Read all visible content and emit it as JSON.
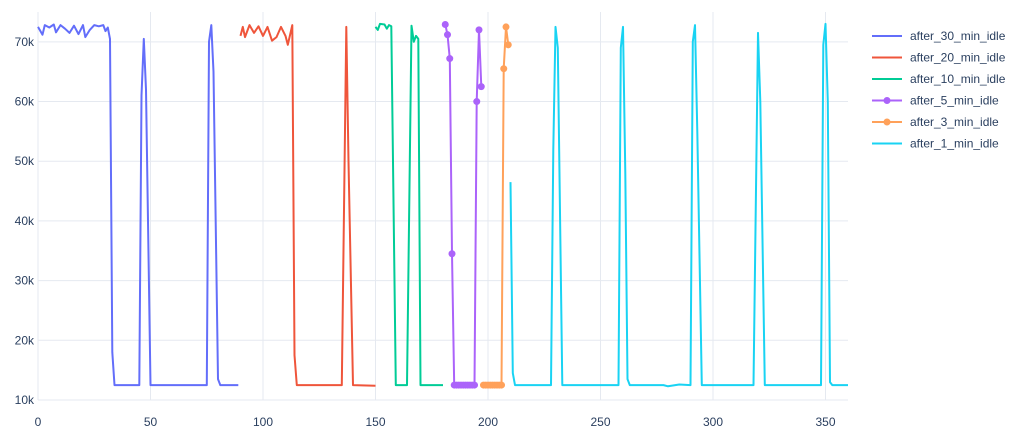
{
  "chart_data": {
    "type": "line",
    "title": "",
    "xlabel": "",
    "ylabel": "",
    "xlim": [
      0,
      360
    ],
    "ylim": [
      10000,
      75000
    ],
    "x_ticks": [
      0,
      50,
      100,
      150,
      200,
      250,
      300,
      350
    ],
    "y_ticks": [
      10000,
      20000,
      30000,
      40000,
      50000,
      60000,
      70000
    ],
    "y_tick_labels": [
      "10k",
      "20k",
      "30k",
      "40k",
      "50k",
      "60k",
      "70k"
    ],
    "grid": true,
    "legend_position": "right",
    "series": [
      {
        "name": "after_30_min_idle",
        "color": "#636efa",
        "mode": "lines",
        "points": [
          [
            0,
            72500
          ],
          [
            2,
            71200
          ],
          [
            3,
            72800
          ],
          [
            5,
            72400
          ],
          [
            7,
            72900
          ],
          [
            8,
            71600
          ],
          [
            10,
            72800
          ],
          [
            12,
            72200
          ],
          [
            14,
            71500
          ],
          [
            16,
            72700
          ],
          [
            18,
            71300
          ],
          [
            20,
            72800
          ],
          [
            21,
            70800
          ],
          [
            23,
            72000
          ],
          [
            25,
            72800
          ],
          [
            27,
            72600
          ],
          [
            29,
            72800
          ],
          [
            30,
            71800
          ],
          [
            31,
            72400
          ],
          [
            32,
            70500
          ],
          [
            33,
            18000
          ],
          [
            34,
            12500
          ],
          [
            45,
            12500
          ],
          [
            46,
            61000
          ],
          [
            47,
            70500
          ],
          [
            48,
            62000
          ],
          [
            50,
            12500
          ],
          [
            75,
            12500
          ],
          [
            76,
            70000
          ],
          [
            77,
            72800
          ],
          [
            78,
            65000
          ],
          [
            80,
            13500
          ],
          [
            81,
            12500
          ],
          [
            89,
            12500
          ]
        ]
      },
      {
        "name": "after_20_min_idle",
        "color": "#ef553b",
        "mode": "lines",
        "points": [
          [
            90,
            71000
          ],
          [
            91,
            72500
          ],
          [
            92,
            70800
          ],
          [
            94,
            72800
          ],
          [
            96,
            71500
          ],
          [
            98,
            72600
          ],
          [
            100,
            71000
          ],
          [
            102,
            72500
          ],
          [
            104,
            70200
          ],
          [
            106,
            70800
          ],
          [
            108,
            72500
          ],
          [
            110,
            71000
          ],
          [
            111,
            69500
          ],
          [
            113,
            72800
          ],
          [
            114,
            17500
          ],
          [
            115,
            12500
          ],
          [
            135,
            12500
          ],
          [
            137,
            72500
          ],
          [
            138,
            50000
          ],
          [
            140,
            12500
          ],
          [
            150,
            12400
          ]
        ]
      },
      {
        "name": "after_10_min_idle",
        "color": "#00cc96",
        "mode": "lines",
        "points": [
          [
            150,
            72500
          ],
          [
            151,
            72000
          ],
          [
            152,
            73000
          ],
          [
            154,
            72900
          ],
          [
            155,
            72200
          ],
          [
            156,
            72800
          ],
          [
            157,
            72600
          ],
          [
            159,
            12500
          ],
          [
            164,
            12500
          ],
          [
            166,
            72700
          ],
          [
            167,
            70000
          ],
          [
            168,
            71000
          ],
          [
            169,
            70500
          ],
          [
            170,
            12500
          ],
          [
            180,
            12500
          ]
        ]
      },
      {
        "name": "after_5_min_idle",
        "color": "#ab63fa",
        "mode": "lines+markers",
        "points": [
          [
            181,
            72900
          ],
          [
            182,
            71200
          ],
          [
            183,
            67200
          ],
          [
            184,
            34500
          ],
          [
            185,
            12500
          ],
          [
            186,
            12500
          ],
          [
            187,
            12500
          ],
          [
            188,
            12500
          ],
          [
            189,
            12500
          ],
          [
            190,
            12500
          ],
          [
            191,
            12500
          ],
          [
            192,
            12500
          ],
          [
            193,
            12500
          ],
          [
            194,
            12500
          ],
          [
            195,
            60000
          ],
          [
            196,
            72000
          ],
          [
            197,
            62500
          ]
        ]
      },
      {
        "name": "after_3_min_idle",
        "color": "#ffa15a",
        "mode": "lines+markers",
        "points": [
          [
            198,
            12500
          ],
          [
            199,
            12500
          ],
          [
            200,
            12500
          ],
          [
            201,
            12500
          ],
          [
            202,
            12500
          ],
          [
            203,
            12500
          ],
          [
            204,
            12500
          ],
          [
            205,
            12500
          ],
          [
            206,
            12500
          ],
          [
            207,
            65500
          ],
          [
            208,
            72500
          ],
          [
            209,
            69500
          ]
        ]
      },
      {
        "name": "after_1_min_idle",
        "color": "#19d3f3",
        "mode": "lines",
        "points": [
          [
            210,
            46500
          ],
          [
            211,
            14500
          ],
          [
            212,
            12500
          ],
          [
            228,
            12500
          ],
          [
            229,
            52000
          ],
          [
            230,
            72500
          ],
          [
            231,
            69000
          ],
          [
            233,
            12500
          ],
          [
            258,
            12500
          ],
          [
            259,
            69000
          ],
          [
            260,
            72500
          ],
          [
            261,
            48000
          ],
          [
            262,
            13500
          ],
          [
            263,
            12500
          ],
          [
            270,
            12500
          ],
          [
            278,
            12500
          ],
          [
            280,
            12300
          ],
          [
            285,
            12600
          ],
          [
            290,
            12500
          ],
          [
            291,
            70000
          ],
          [
            292,
            72800
          ],
          [
            293,
            55000
          ],
          [
            295,
            12500
          ],
          [
            318,
            12500
          ],
          [
            320,
            71500
          ],
          [
            321,
            60000
          ],
          [
            323,
            12500
          ],
          [
            348,
            12500
          ],
          [
            349,
            69500
          ],
          [
            350,
            73000
          ],
          [
            351,
            60000
          ],
          [
            352,
            13000
          ],
          [
            353,
            12500
          ],
          [
            360,
            12500
          ]
        ]
      }
    ]
  }
}
